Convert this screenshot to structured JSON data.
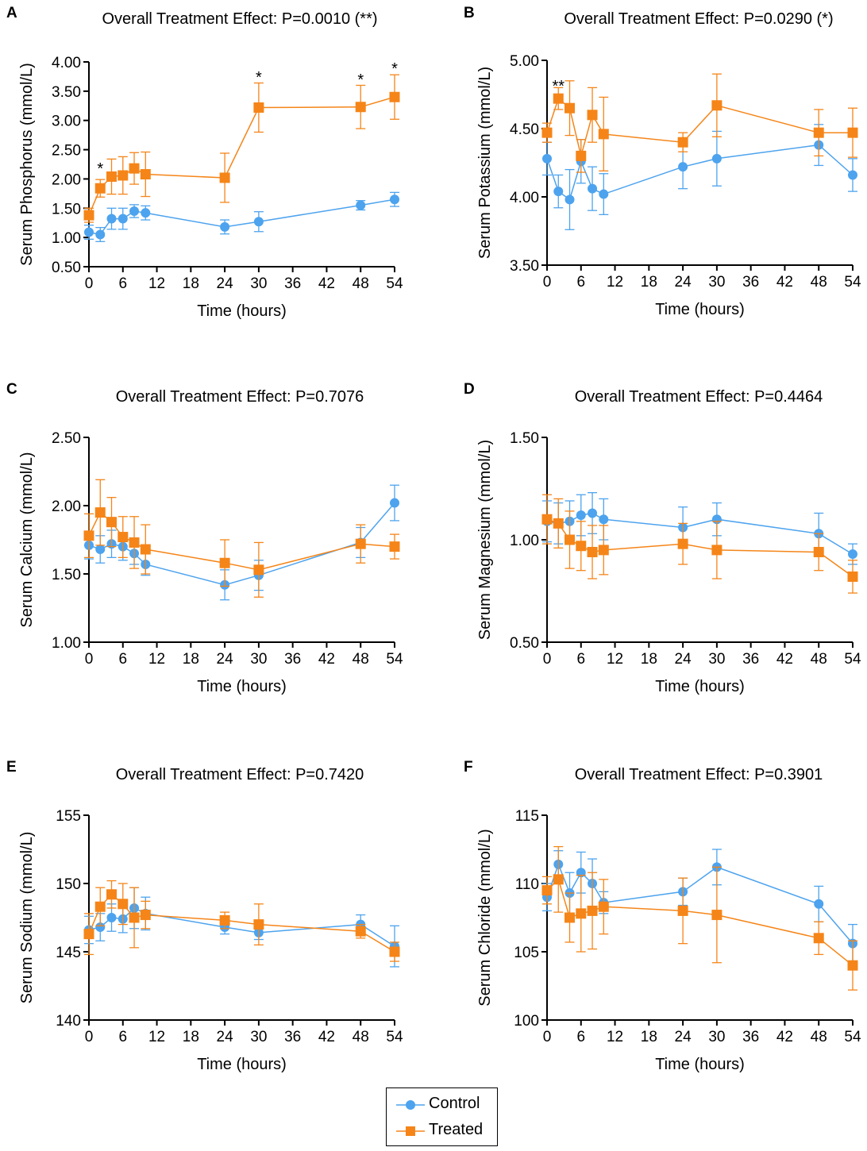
{
  "colors": {
    "control": "#4da3ee",
    "treated": "#f58518",
    "axis": "#000000"
  },
  "x_axis": {
    "label": "Time (hours)",
    "ticks": [
      0,
      6,
      12,
      18,
      24,
      30,
      36,
      42,
      48,
      54
    ],
    "range": [
      0,
      54
    ]
  },
  "times": [
    0,
    2,
    4,
    6,
    8,
    10,
    24,
    30,
    48,
    54
  ],
  "legend": {
    "control_label": "Control",
    "treated_label": "Treated"
  },
  "chart_data": [
    {
      "type": "line",
      "panel": "A",
      "title": "Overall Treatment Effect: P=0.0010 (**)",
      "xlabel": "Time (hours)",
      "ylabel": "Serum Phosphorus (mmol/L)",
      "ylim": [
        0.5,
        4.0
      ],
      "yticks": [
        0.5,
        1.0,
        1.5,
        2.0,
        2.5,
        3.0,
        3.5,
        4.0
      ],
      "ytick_decimals": 2,
      "series": [
        {
          "name": "Control",
          "values": [
            1.09,
            1.05,
            1.32,
            1.32,
            1.45,
            1.42,
            1.18,
            1.27,
            1.55,
            1.65
          ],
          "errors": [
            0.12,
            0.12,
            0.18,
            0.18,
            0.11,
            0.12,
            0.12,
            0.17,
            0.08,
            0.12
          ]
        },
        {
          "name": "Treated",
          "values": [
            1.38,
            1.84,
            2.04,
            2.06,
            2.18,
            2.08,
            2.02,
            3.22,
            3.23,
            3.4
          ],
          "errors": [
            0.12,
            0.15,
            0.3,
            0.32,
            0.27,
            0.38,
            0.42,
            0.42,
            0.37,
            0.38
          ]
        }
      ],
      "annotations": [
        {
          "x": 2,
          "y": 2.22,
          "text": "*"
        },
        {
          "x": 30,
          "y": 3.78,
          "text": "*"
        },
        {
          "x": 48,
          "y": 3.74,
          "text": "*"
        },
        {
          "x": 54,
          "y": 3.93,
          "text": "*"
        }
      ]
    },
    {
      "type": "line",
      "panel": "B",
      "title": "Overall Treatment Effect: P=0.0290 (*)",
      "xlabel": "Time (hours)",
      "ylabel": "Serum Potassium (mmol/L)",
      "ylim": [
        3.5,
        5.0
      ],
      "yticks": [
        3.5,
        4.0,
        4.5,
        5.0
      ],
      "ytick_decimals": 2,
      "series": [
        {
          "name": "Control",
          "values": [
            4.28,
            4.04,
            3.98,
            4.26,
            4.06,
            4.02,
            4.22,
            4.28,
            4.38,
            4.16
          ],
          "errors": [
            0.12,
            0.12,
            0.22,
            0.16,
            0.16,
            0.15,
            0.16,
            0.2,
            0.15,
            0.12
          ]
        },
        {
          "name": "Treated",
          "values": [
            4.47,
            4.72,
            4.65,
            4.3,
            4.6,
            4.46,
            4.4,
            4.67,
            4.47,
            4.47
          ],
          "errors": [
            0.07,
            0.08,
            0.2,
            0.12,
            0.2,
            0.27,
            0.07,
            0.23,
            0.17,
            0.18
          ]
        }
      ],
      "annotations": [
        {
          "x": 2,
          "y": 4.83,
          "text": "**"
        }
      ]
    },
    {
      "type": "line",
      "panel": "C",
      "title": "Overall Treatment Effect: P=0.7076",
      "xlabel": "Time (hours)",
      "ylabel": "Serum Calcium (mmol/L)",
      "ylim": [
        1.0,
        2.5
      ],
      "yticks": [
        1.0,
        1.5,
        2.0,
        2.5
      ],
      "ytick_decimals": 2,
      "series": [
        {
          "name": "Control",
          "values": [
            1.71,
            1.68,
            1.72,
            1.7,
            1.65,
            1.57,
            1.42,
            1.49,
            1.73,
            2.02
          ],
          "errors": [
            0.1,
            0.1,
            0.1,
            0.1,
            0.08,
            0.08,
            0.11,
            0.11,
            0.11,
            0.13
          ]
        },
        {
          "name": "Treated",
          "values": [
            1.78,
            1.95,
            1.88,
            1.77,
            1.73,
            1.68,
            1.58,
            1.53,
            1.72,
            1.7
          ],
          "errors": [
            0.16,
            0.24,
            0.18,
            0.15,
            0.19,
            0.18,
            0.17,
            0.2,
            0.14,
            0.09
          ]
        }
      ]
    },
    {
      "type": "line",
      "panel": "D",
      "title": "Overall Treatment Effect: P=0.4464",
      "xlabel": "Time (hours)",
      "ylabel": "Serum Magnesium (mmol/L)",
      "ylim": [
        0.5,
        1.5
      ],
      "yticks": [
        0.5,
        1.0,
        1.5
      ],
      "ytick_decimals": 2,
      "series": [
        {
          "name": "Control",
          "values": [
            1.09,
            1.08,
            1.09,
            1.12,
            1.13,
            1.1,
            1.06,
            1.1,
            1.03,
            0.93
          ],
          "errors": [
            0.1,
            0.1,
            0.1,
            0.1,
            0.1,
            0.1,
            0.1,
            0.08,
            0.1,
            0.05
          ]
        },
        {
          "name": "Treated",
          "values": [
            1.1,
            1.08,
            1.0,
            0.97,
            0.94,
            0.95,
            0.98,
            0.95,
            0.94,
            0.82
          ],
          "errors": [
            0.12,
            0.12,
            0.14,
            0.12,
            0.13,
            0.12,
            0.1,
            0.14,
            0.09,
            0.08
          ]
        }
      ]
    },
    {
      "type": "line",
      "panel": "E",
      "title": "Overall Treatment Effect: P=0.7420",
      "xlabel": "Time (hours)",
      "ylabel": "Serum Sodium (mmol/L)",
      "ylim": [
        140,
        155
      ],
      "yticks": [
        140,
        145,
        150,
        155
      ],
      "ytick_decimals": 0,
      "series": [
        {
          "name": "Control",
          "values": [
            146.6,
            146.8,
            147.5,
            147.4,
            148.2,
            147.8,
            146.8,
            146.4,
            147.0,
            145.4
          ],
          "errors": [
            1.0,
            1.0,
            1.0,
            1.0,
            1.5,
            1.2,
            0.5,
            0.5,
            0.7,
            1.5
          ]
        },
        {
          "name": "Treated",
          "values": [
            146.3,
            148.3,
            149.2,
            148.5,
            147.5,
            147.7,
            147.3,
            147.0,
            146.5,
            145.0
          ],
          "errors": [
            1.5,
            1.4,
            1.0,
            1.5,
            2.2,
            1.0,
            0.6,
            1.5,
            0.5,
            0.7
          ]
        }
      ]
    },
    {
      "type": "line",
      "panel": "F",
      "title": "Overall Treatment Effect: P=0.3901",
      "xlabel": "Time (hours)",
      "ylabel": "Serum Chloride (mmol/L)",
      "ylim": [
        100,
        115
      ],
      "yticks": [
        100,
        105,
        110,
        115
      ],
      "ytick_decimals": 0,
      "series": [
        {
          "name": "Control",
          "values": [
            109.0,
            111.4,
            109.3,
            110.8,
            110.0,
            108.6,
            109.4,
            111.2,
            108.5,
            105.6
          ],
          "errors": [
            1.0,
            1.0,
            1.5,
            1.5,
            1.8,
            0.8,
            1.0,
            1.3,
            1.3,
            1.4
          ]
        },
        {
          "name": "Treated",
          "values": [
            109.5,
            110.3,
            107.5,
            107.8,
            108.0,
            108.3,
            108.0,
            107.7,
            106.0,
            104.0
          ],
          "errors": [
            1.0,
            2.4,
            1.8,
            2.8,
            2.8,
            2.0,
            2.4,
            3.5,
            1.2,
            1.8
          ]
        }
      ]
    }
  ]
}
